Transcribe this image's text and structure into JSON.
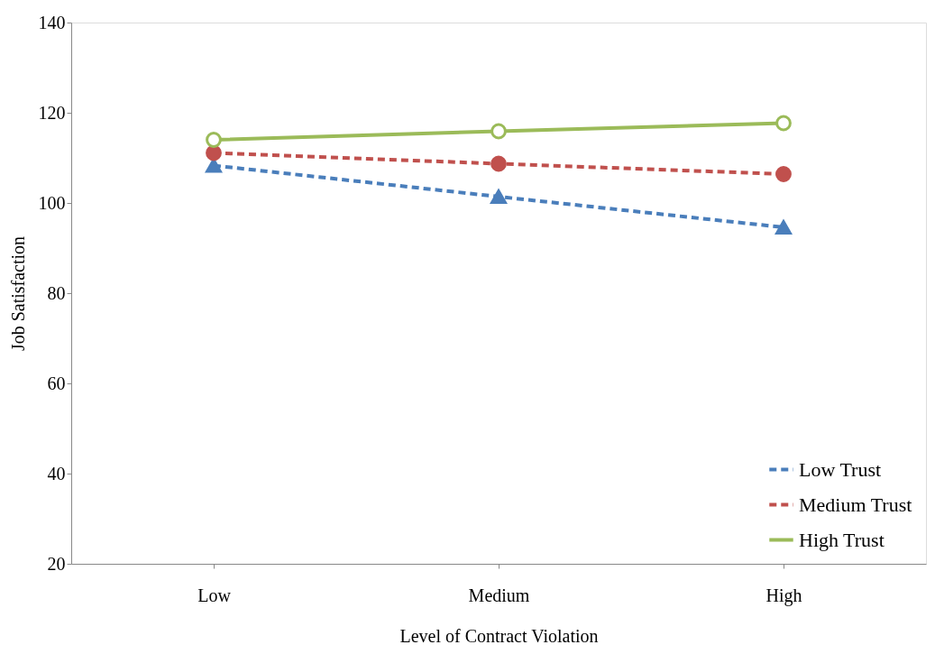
{
  "chart_data": {
    "type": "line",
    "xlabel": "Level of Contract Violation",
    "ylabel": "Job Satisfaction",
    "categories": [
      "Low",
      "Medium",
      "High"
    ],
    "series": [
      {
        "name": "Low Trust",
        "color": "#4a7ebb",
        "values": [
          108.3,
          101.4,
          94.6
        ],
        "marker": "triangle",
        "line_style": "dashed"
      },
      {
        "name": "Medium Trust",
        "color": "#c0504d",
        "values": [
          111.1,
          108.7,
          106.4
        ],
        "marker": "circle",
        "line_style": "dashed"
      },
      {
        "name": "High Trust",
        "color": "#9bbb59",
        "values": [
          114.0,
          115.9,
          117.7
        ],
        "marker": "circle",
        "line_style": "solid"
      }
    ],
    "ylim": [
      20,
      140
    ],
    "yticks": [
      20,
      40,
      60,
      80,
      100,
      120,
      140
    ],
    "grid": false,
    "legend": "bottom right"
  }
}
